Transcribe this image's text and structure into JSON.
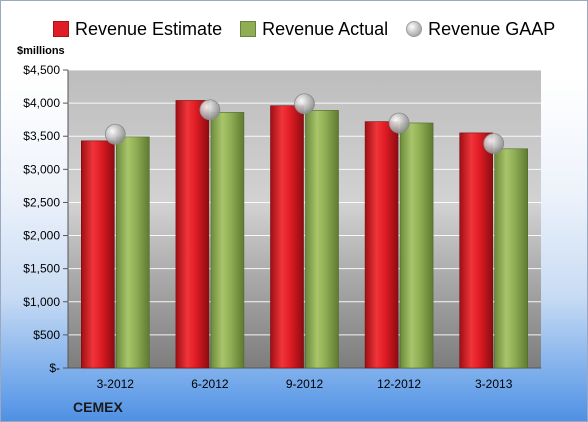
{
  "units_label": "$millions",
  "company": "CEMEX",
  "legend": [
    {
      "label": "Revenue Estimate",
      "color": "#e01c24",
      "shape": "square"
    },
    {
      "label": "Revenue Actual",
      "color": "#8fae54",
      "shape": "square"
    },
    {
      "label": "Revenue GAAP",
      "color": "#bdbdbd",
      "shape": "circle"
    }
  ],
  "chart_data": {
    "type": "bar",
    "title": "",
    "xlabel": "",
    "ylabel": "$millions",
    "ylim": [
      0,
      4500
    ],
    "y_ticks": [
      0,
      500,
      1000,
      1500,
      2000,
      2500,
      3000,
      3500,
      4000,
      4500
    ],
    "y_tick_labels": [
      "$-",
      "$500",
      "$1,000",
      "$1,500",
      "$2,000",
      "$2,500",
      "$3,000",
      "$3,500",
      "$4,000",
      "$4,500"
    ],
    "categories": [
      "3-2012",
      "6-2012",
      "9-2012",
      "12-2012",
      "3-2013"
    ],
    "series": [
      {
        "name": "Revenue Estimate",
        "type": "bar",
        "color": "#e01c24",
        "values": [
          3430,
          4040,
          3960,
          3720,
          3550
        ]
      },
      {
        "name": "Revenue Actual",
        "type": "bar",
        "color": "#8fae54",
        "values": [
          3490,
          3860,
          3890,
          3700,
          3310
        ]
      },
      {
        "name": "Revenue GAAP",
        "type": "marker",
        "color": "#bdbdbd",
        "values": [
          3530,
          3900,
          3990,
          3700,
          3390
        ]
      }
    ],
    "grid": true,
    "legend_position": "top"
  }
}
